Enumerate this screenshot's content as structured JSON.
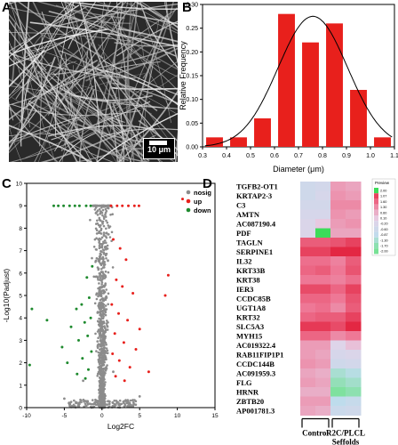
{
  "panels": {
    "a": "A",
    "b": "B",
    "c": "C",
    "d": "D"
  },
  "sem": {
    "scale_label": "10 μm"
  },
  "chart_data": [
    {
      "type": "bar",
      "panel": "B",
      "xlabel": "Diameter (μm)",
      "ylabel": "Relative Frequency",
      "xlim": [
        0.3,
        1.1
      ],
      "ylim": [
        0,
        0.3
      ],
      "xticks": [
        "0.3",
        "0.4",
        "0.5",
        "0.6",
        "0.7",
        "0.8",
        "0.9",
        "1.0",
        "1.1"
      ],
      "yticks": [
        "0.00",
        "0.05",
        "0.10",
        "0.15",
        "0.20",
        "0.25",
        "0.30"
      ],
      "bar_width": 0.07,
      "x": [
        0.35,
        0.45,
        0.55,
        0.65,
        0.75,
        0.85,
        0.95,
        1.05
      ],
      "values": [
        0.02,
        0.02,
        0.06,
        0.28,
        0.22,
        0.26,
        0.12,
        0.02
      ],
      "fit_curve": {
        "type": "gaussian",
        "mean": 0.76,
        "sd": 0.145,
        "peak": 0.275
      },
      "bar_color": "#e8201c"
    },
    {
      "type": "scatter",
      "panel": "C",
      "xlabel": "Log2FC",
      "ylabel": "-Log10(Padjust)",
      "xlim": [
        -10,
        15
      ],
      "ylim": [
        0,
        10
      ],
      "xticks": [
        "-10",
        "-5",
        "0",
        "5",
        "10",
        "15"
      ],
      "yticks": [
        "0",
        "1",
        "2",
        "3",
        "4",
        "5",
        "6",
        "7",
        "8",
        "9",
        "10"
      ],
      "legend": {
        "position": "top-right",
        "entries": [
          "nosig",
          "up",
          "down"
        ]
      },
      "colors": {
        "nosig": "#8c8c8c",
        "up": "#e8201c",
        "down": "#1e8a2e"
      },
      "series": [
        {
          "name": "up",
          "points": [
            [
              1.2,
              9.0
            ],
            [
              2.0,
              9.0
            ],
            [
              2.7,
              9.0
            ],
            [
              3.5,
              9.0
            ],
            [
              4.3,
              9.0
            ],
            [
              4.9,
              9.0
            ],
            [
              1.5,
              7.5
            ],
            [
              2.4,
              7.1
            ],
            [
              3.2,
              6.6
            ],
            [
              1.9,
              5.7
            ],
            [
              2.7,
              5.4
            ],
            [
              4.1,
              5.1
            ],
            [
              1.3,
              4.6
            ],
            [
              2.2,
              4.2
            ],
            [
              3.4,
              3.9
            ],
            [
              5.0,
              3.5
            ],
            [
              1.7,
              3.3
            ],
            [
              2.9,
              2.9
            ],
            [
              4.5,
              2.6
            ],
            [
              1.4,
              2.4
            ],
            [
              2.3,
              2.1
            ],
            [
              3.7,
              1.8
            ],
            [
              6.2,
              1.6
            ],
            [
              1.8,
              1.4
            ],
            [
              3.0,
              1.2
            ],
            [
              10.7,
              9.3
            ],
            [
              8.8,
              5.9
            ],
            [
              8.4,
              5.0
            ]
          ]
        },
        {
          "name": "down",
          "points": [
            [
              -1.5,
              9.0
            ],
            [
              -2.1,
              9.0
            ],
            [
              -3.0,
              9.0
            ],
            [
              -3.6,
              9.0
            ],
            [
              -4.3,
              9.0
            ],
            [
              -5.1,
              9.0
            ],
            [
              -5.8,
              9.0
            ],
            [
              -6.4,
              9.0
            ],
            [
              -1.3,
              6.3
            ],
            [
              -2.0,
              5.8
            ],
            [
              -1.7,
              4.9
            ],
            [
              -2.7,
              4.6
            ],
            [
              -3.4,
              4.4
            ],
            [
              -1.5,
              4.0
            ],
            [
              -2.3,
              3.8
            ],
            [
              -4.1,
              3.6
            ],
            [
              -1.9,
              3.2
            ],
            [
              -3.1,
              3.0
            ],
            [
              -5.3,
              2.7
            ],
            [
              -1.4,
              2.5
            ],
            [
              -2.6,
              2.2
            ],
            [
              -4.6,
              2.0
            ],
            [
              -1.8,
              1.7
            ],
            [
              -3.3,
              1.5
            ],
            [
              -2.2,
              1.3
            ],
            [
              -9.3,
              4.4
            ],
            [
              -9.6,
              1.9
            ],
            [
              -7.3,
              3.9
            ]
          ]
        }
      ],
      "nosig_cloud": {
        "x_range": [
          -1,
          1
        ],
        "y_max": 9,
        "columns": [
          [
            -5,
            0.4
          ],
          [
            -2.5,
            1.2
          ],
          [
            1.5,
            1.6
          ],
          [
            5,
            0.5
          ]
        ]
      }
    },
    {
      "type": "heatmap",
      "panel": "D",
      "genes": [
        "TGFB2-OT1",
        "KRTAP2-3",
        "C3",
        "AMTN",
        "AC087190.4",
        "PDF",
        "TAGLN",
        "SERPINE1",
        "IL32",
        "KRT33B",
        "KRT38",
        "IER3",
        "CCDC85B",
        "UGT1A8",
        "KRT32",
        "SLC5A3",
        "MYH15",
        "AC019322.4",
        "RAB11FIP1P1",
        "CCDC144B",
        "AC091959.3",
        "FLG",
        "HRNR",
        "ZBTB20",
        "AP001781.3"
      ],
      "columns": 4,
      "groups": [
        {
          "label_lines": [
            "Control"
          ],
          "columns": [
            0,
            1
          ]
        },
        {
          "label_lines": [
            "R2C/PLCL",
            "Seffolds"
          ],
          "columns": [
            2,
            3
          ]
        }
      ],
      "values": [
        [
          -0.6,
          -0.5,
          0.6,
          0.5
        ],
        [
          -0.6,
          -0.4,
          0.7,
          0.6
        ],
        [
          -0.5,
          -0.5,
          0.8,
          0.8
        ],
        [
          -0.4,
          -0.4,
          0.7,
          0.6
        ],
        [
          -0.3,
          0.1,
          0.6,
          0.7
        ],
        [
          -0.3,
          2.4,
          0.5,
          0.5
        ],
        [
          1.3,
          1.3,
          1.4,
          1.6
        ],
        [
          1.6,
          1.6,
          1.9,
          1.9
        ],
        [
          1.1,
          1.1,
          0.9,
          1.3
        ],
        [
          1.2,
          1.3,
          1.0,
          1.4
        ],
        [
          1.0,
          1.0,
          0.9,
          1.1
        ],
        [
          1.5,
          1.5,
          1.2,
          1.6
        ],
        [
          1.2,
          1.2,
          1.0,
          1.4
        ],
        [
          1.0,
          1.1,
          0.8,
          1.3
        ],
        [
          1.2,
          1.3,
          1.3,
          1.6
        ],
        [
          1.7,
          1.7,
          1.5,
          1.9
        ],
        [
          1.2,
          1.2,
          0.8,
          1.0
        ],
        [
          0.6,
          0.6,
          -0.2,
          0.2
        ],
        [
          0.6,
          0.5,
          -0.4,
          -0.3
        ],
        [
          0.7,
          0.6,
          -0.6,
          -0.5
        ],
        [
          0.5,
          0.4,
          -1.3,
          -1.1
        ],
        [
          0.6,
          0.5,
          -1.6,
          -1.4
        ],
        [
          0.4,
          0.4,
          -1.9,
          -1.7
        ],
        [
          0.6,
          0.6,
          -1.0,
          -0.8
        ],
        [
          0.5,
          0.4,
          -0.7,
          -0.6
        ]
      ],
      "legend": {
        "title": "Preview",
        "ticks": [
          "2.00",
          "1.07",
          "1.60",
          "1.30",
          "0.60",
          "0.10",
          "-0.20",
          "-0.60",
          "-0.87",
          "-1.30",
          "-1.70",
          "-2.00"
        ]
      }
    }
  ]
}
